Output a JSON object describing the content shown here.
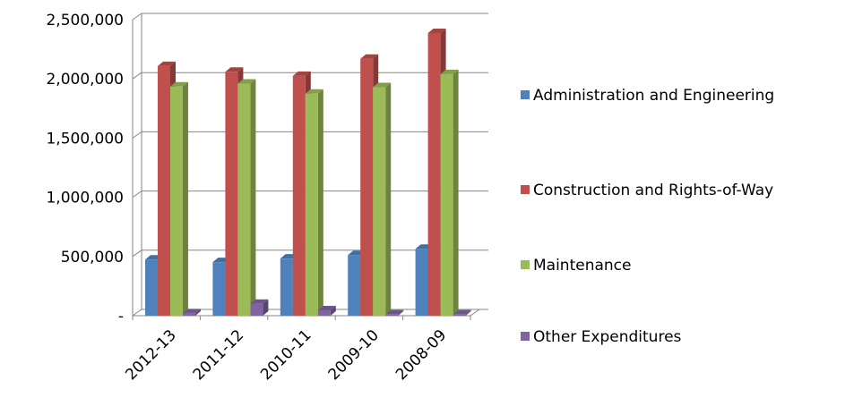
{
  "chart_data": {
    "type": "bar3d",
    "categories": [
      "2012-13",
      "2011-12",
      "2010-11",
      "2009-10",
      "2008-09"
    ],
    "series": [
      {
        "name": "Administration and Engineering",
        "color": "#4f81bd",
        "values": [
          474000,
          452000,
          482000,
          512000,
          565000
        ]
      },
      {
        "name": "Construction and Rights-of-Way",
        "color": "#c0504d",
        "values": [
          2108000,
          2060000,
          2025000,
          2170000,
          2387000
        ]
      },
      {
        "name": "Maintenance",
        "color": "#9bbb59",
        "values": [
          1935000,
          1960000,
          1875000,
          1930000,
          2040000
        ]
      },
      {
        "name": "Other Expenditures",
        "color": "#8064a2",
        "values": [
          20000,
          100000,
          45000,
          10000,
          10000
        ]
      }
    ],
    "ylim": [
      0,
      2500000
    ],
    "yticks": [
      {
        "value": 0,
        "label": "-"
      },
      {
        "value": 500000,
        "label": "500,000"
      },
      {
        "value": 1000000,
        "label": "1,000,000"
      },
      {
        "value": 1500000,
        "label": "1,500,000"
      },
      {
        "value": 2000000,
        "label": "2,000,000"
      },
      {
        "value": 2500000,
        "label": "2,500,000"
      }
    ],
    "grid": true,
    "legend": "right"
  }
}
